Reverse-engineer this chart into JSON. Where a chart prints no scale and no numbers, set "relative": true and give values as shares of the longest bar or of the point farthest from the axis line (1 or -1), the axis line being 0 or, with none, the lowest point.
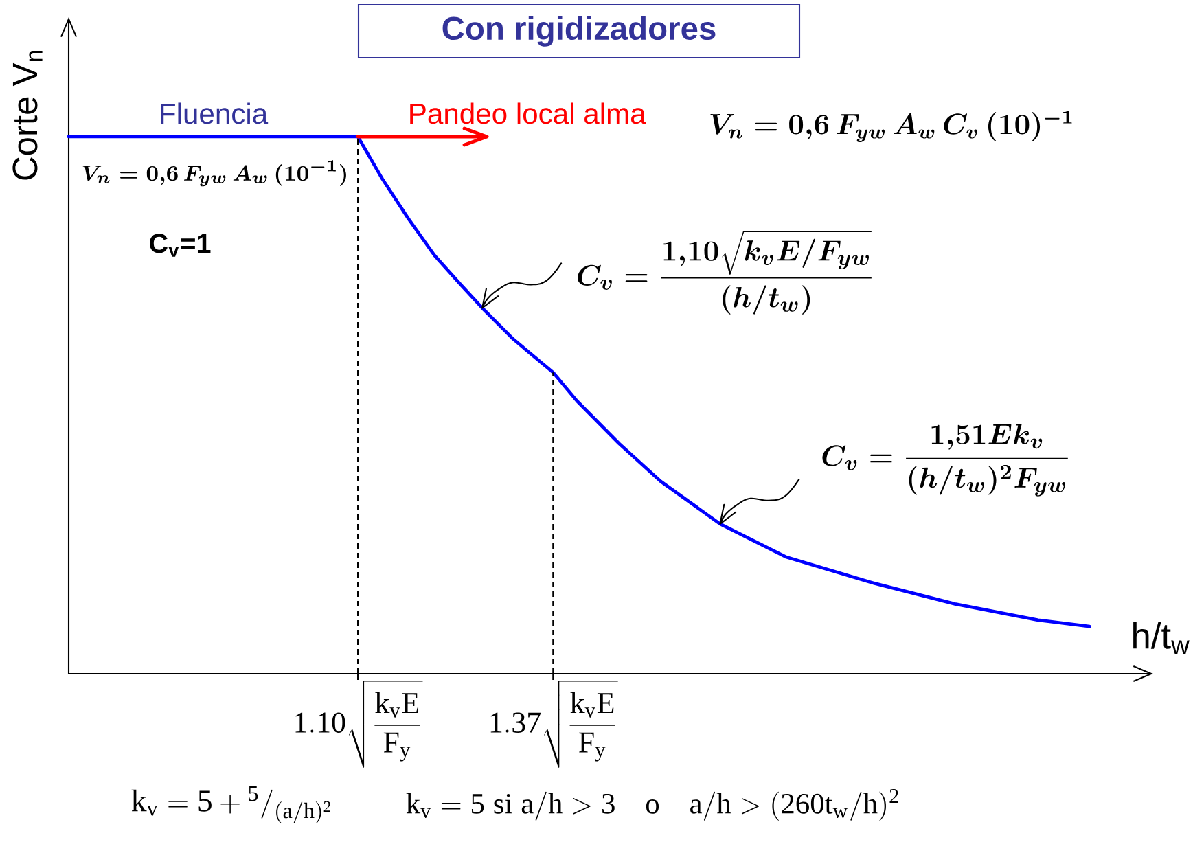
{
  "chart_data": {
    "type": "line",
    "title": "Con rigidizadores",
    "xlabel": "h/t$_{w}$",
    "ylabel": "Corte V$_{n}$",
    "relative": true,
    "x": [
      0.7,
      1.1,
      1.134,
      1.17,
      1.206,
      1.242,
      1.272,
      1.315,
      1.37,
      1.403,
      1.461,
      1.519,
      1.601,
      1.693,
      1.81,
      1.926,
      2.041,
      2.112
    ],
    "values": [
      1,
      1,
      0.921,
      0.847,
      0.779,
      0.725,
      0.681,
      0.623,
      0.561,
      0.508,
      0.429,
      0.358,
      0.279,
      0.217,
      0.17,
      0.13,
      0.1,
      0.088
    ],
    "color": "#0000ff",
    "xlim": [
      0.7,
      2.2
    ],
    "xticks": [
      {
        "value": 1.1,
        "label": "\\mathrm{1.10\\sqrt{\\frac{k_{v}E}{F_{y}}}}"
      },
      {
        "value": 1.37,
        "label": "\\mathrm{1.37\\sqrt{\\frac{k_{v}E}{F_{y}}}}"
      }
    ],
    "ref_lines": [
      {
        "axis": "x",
        "value": 1.1,
        "color": "#000000",
        "line_style": "dashed"
      },
      {
        "axis": "x",
        "value": 1.37,
        "color": "#000000",
        "line_style": "dashed"
      }
    ],
    "annotations": [
      {
        "text": "Fluencia",
        "x": 0.9,
        "y": 1
      },
      {
        "text": "Pandeo local alma",
        "x": 1.1,
        "y": 1
      },
      "V_{n} = 0{,}6\\,F_{yw}\\,A_{w}\\,(10^{-1})",
      "C$_{v}$=1",
      "V_{n} = 0{,}6\\,F_{yw}\\,A_{w}\\,C_{v}\\,(10)^{-1}",
      {
        "text": "C_{v} = \\frac{1{,}10\\sqrt{k_{v}E/F_{yw}}}{(h/t_{w})}",
        "x": 1.272,
        "y": 0.681
      },
      {
        "text": "C_{v} = \\frac{1{,}51Ek_{v}}{(h/t_{w})^{2}F_{yw}}",
        "x": 1.601,
        "y": 0.279
      },
      "\\mathrm{k_{v} = 5 + {}^{5}/_{(a/h)^{2}}}",
      "\\mathrm{k_{v} = 5\\ si\\ a/h > 3\\quad o\\quad a/h > (260t_{w}/h)^{2}}"
    ]
  }
}
